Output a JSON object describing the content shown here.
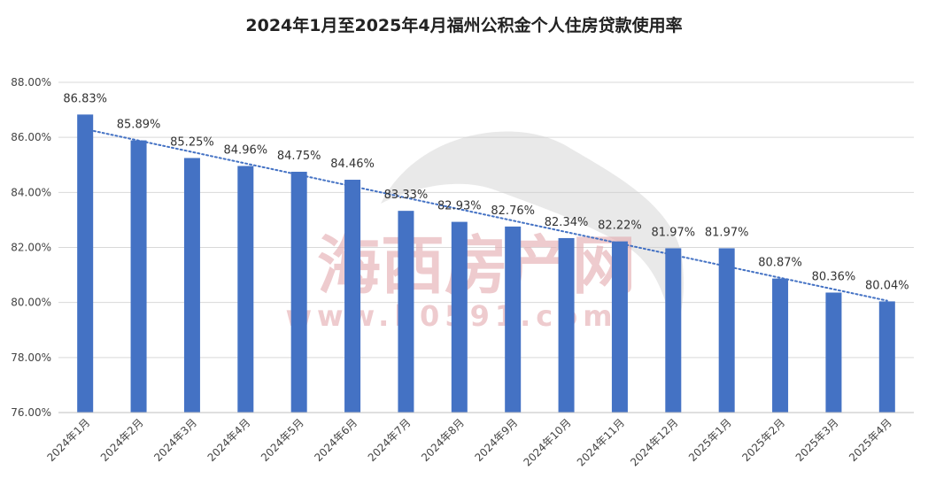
{
  "chart_data": {
    "type": "bar",
    "title": "2024年1月至2025年4月福州公积金个人住房贷款使用率",
    "xlabel": "",
    "ylabel": "",
    "ylim": [
      76,
      88
    ],
    "yticks": [
      "76.00%",
      "78.00%",
      "80.00%",
      "82.00%",
      "84.00%",
      "86.00%",
      "88.00%"
    ],
    "grid": true,
    "legend": "none",
    "trendline": "linear",
    "categories": [
      "2024年1月",
      "2024年2月",
      "2024年3月",
      "2024年4月",
      "2024年5月",
      "2024年6月",
      "2024年7月",
      "2024年8月",
      "2024年9月",
      "2024年10月",
      "2024年11月",
      "2024年12月",
      "2025年1月",
      "2025年2月",
      "2025年3月",
      "2025年4月"
    ],
    "values": [
      86.83,
      85.89,
      85.25,
      84.96,
      84.75,
      84.46,
      83.33,
      82.93,
      82.76,
      82.34,
      82.22,
      81.97,
      81.97,
      80.87,
      80.36,
      80.04
    ],
    "data_labels": [
      "86.83%",
      "85.89%",
      "85.25%",
      "84.96%",
      "84.75%",
      "84.46%",
      "83.33%",
      "82.93%",
      "82.76%",
      "82.34%",
      "82.22%",
      "81.97%",
      "81.97%",
      "80.87%",
      "80.36%",
      "80.04%"
    ]
  },
  "watermark": {
    "name": "海西房产网",
    "url": "www.h0591.com"
  },
  "colors": {
    "bar": "#4472c4",
    "trendline": "#4472c4",
    "grid": "#d9d9d9",
    "watermark": "#e8b4b8"
  }
}
